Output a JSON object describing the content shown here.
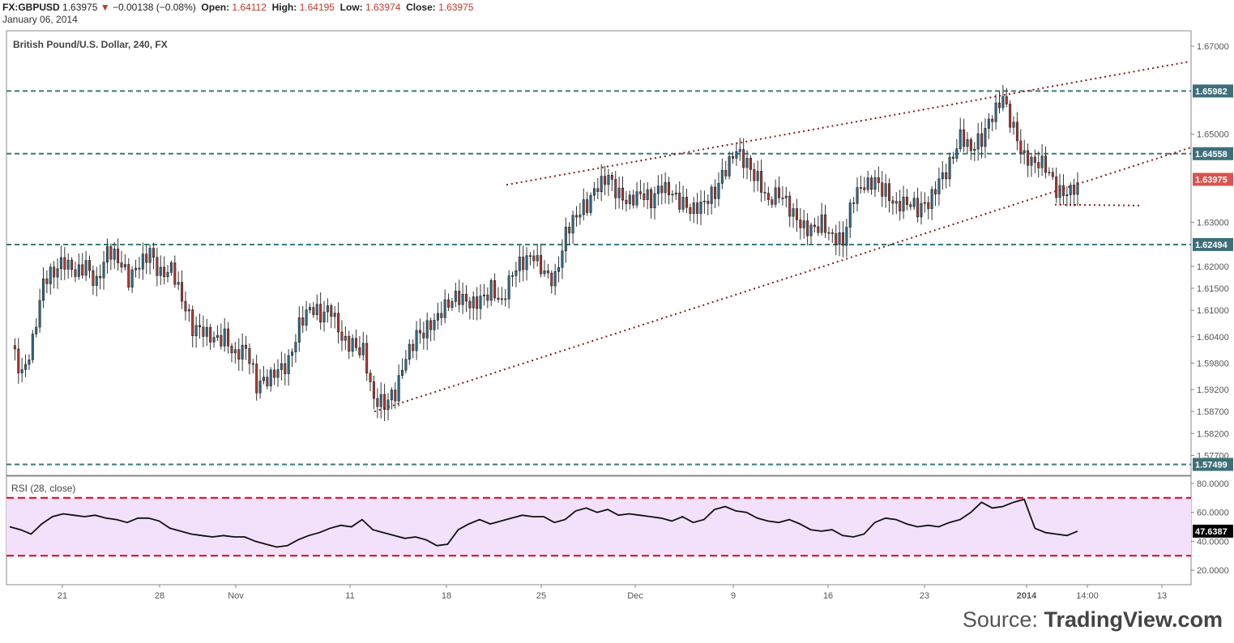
{
  "header": {
    "symbol": "FX:GBPUSD",
    "last": "1.63975",
    "change_arrow": "▼",
    "change": "−0.00138 (−0.08%)",
    "open_label": "Open:",
    "open": "1.64112",
    "high_label": "High:",
    "high": "1.64195",
    "low_label": "Low:",
    "low": "1.63974",
    "close_label": "Close:",
    "close": "1.63975",
    "date": "January 06, 2014"
  },
  "source": {
    "prefix": "Source: ",
    "brand": "TradingView.com"
  },
  "colors": {
    "up": "#2c6e8f",
    "down": "#b03a2e",
    "hline": "#3a7a7a",
    "trend": "#8b1a1a",
    "rsi_band": "#f3e0fb",
    "rsi_bound": "#e0001b",
    "price_tag": "#d9534f",
    "level_tag": "#3d6f78"
  },
  "chart_data": [
    {
      "type": "candlestick",
      "title": "British Pound/U.S. Dollar, 240, FX",
      "ylim": [
        1.5725,
        1.6735
      ],
      "y_ticks": [
        "1.67000",
        "1.65000",
        "1.63000",
        "1.62000",
        "1.61500",
        "1.61000",
        "1.60400",
        "1.59800",
        "1.59200",
        "1.58700",
        "1.58200",
        "1.57700"
      ],
      "y_tick_values": [
        1.67,
        1.65,
        1.63,
        1.62,
        1.615,
        1.61,
        1.604,
        1.598,
        1.592,
        1.587,
        1.582,
        1.577
      ],
      "x_ticks": [
        "21",
        "28",
        "Nov",
        "11",
        "18",
        "25",
        "Dec",
        "9",
        "16",
        "23",
        "2014",
        "14:00",
        "13"
      ],
      "x_ticks_bold": [
        false,
        false,
        false,
        false,
        false,
        false,
        false,
        false,
        false,
        false,
        true,
        false,
        false
      ],
      "horizontal_levels": [
        1.65982,
        1.64558,
        1.62494,
        1.57499
      ],
      "level_labels": [
        "1.65982",
        "1.64558",
        "1.62494",
        "1.57499"
      ],
      "last_price": 1.63975,
      "last_price_label": "1.63975",
      "trendlines": [
        {
          "style": "dotted",
          "from": [
            0.0,
            1.6385
          ],
          "to": [
            1.0,
            1.6665
          ],
          "x_domain": "relative_start_mid_dec_to_end"
        },
        {
          "style": "dotted",
          "from": [
            0.0,
            1.587
          ],
          "to": [
            1.0,
            1.647
          ]
        },
        {
          "style": "dotted",
          "from": [
            0.0,
            1.634
          ],
          "to": [
            1.0,
            1.634
          ]
        }
      ],
      "price_path": [
        1.602,
        1.595,
        1.603,
        1.617,
        1.619,
        1.621,
        1.618,
        1.62,
        1.616,
        1.624,
        1.622,
        1.617,
        1.62,
        1.623,
        1.618,
        1.62,
        1.613,
        1.606,
        1.605,
        1.603,
        1.604,
        1.6,
        1.602,
        1.593,
        1.594,
        1.596,
        1.598,
        1.607,
        1.611,
        1.609,
        1.61,
        1.603,
        1.602,
        1.601,
        1.59,
        1.589,
        1.591,
        1.599,
        1.604,
        1.606,
        1.609,
        1.612,
        1.613,
        1.611,
        1.612,
        1.615,
        1.612,
        1.619,
        1.621,
        1.622,
        1.618,
        1.617,
        1.628,
        1.632,
        1.634,
        1.638,
        1.64,
        1.636,
        1.635,
        1.637,
        1.635,
        1.638,
        1.636,
        1.634,
        1.633,
        1.635,
        1.637,
        1.642,
        1.646,
        1.643,
        1.64,
        1.635,
        1.637,
        1.633,
        1.629,
        1.628,
        1.63,
        1.627,
        1.626,
        1.636,
        1.638,
        1.639,
        1.637,
        1.634,
        1.635,
        1.633,
        1.634,
        1.639,
        1.643,
        1.65,
        1.647,
        1.649,
        1.654,
        1.658,
        1.651,
        1.645,
        1.644,
        1.643,
        1.637,
        1.636,
        1.639
      ],
      "price_path_note": ""
    },
    {
      "type": "line",
      "title": "RSI (28, close)",
      "ylim": [
        10,
        85
      ],
      "y_ticks": [
        "80.0000",
        "60.0000",
        "40.0000",
        "20.0000"
      ],
      "y_tick_values": [
        80,
        60,
        40,
        20
      ],
      "bounds": [
        70,
        30
      ],
      "last_value": "47.6387",
      "values": [
        50,
        48,
        45,
        52,
        57,
        59,
        58,
        57,
        58,
        56,
        55,
        53,
        56,
        56,
        54,
        49,
        47,
        45,
        44,
        43,
        44,
        43,
        43,
        40,
        38,
        36,
        37,
        41,
        44,
        46,
        49,
        51,
        50,
        55,
        48,
        46,
        44,
        42,
        43,
        41,
        37,
        38,
        48,
        52,
        55,
        52,
        54,
        56,
        58,
        57,
        57,
        53,
        55,
        61,
        63,
        60,
        62,
        58,
        59,
        58,
        57,
        56,
        54,
        57,
        53,
        55,
        62,
        64,
        61,
        60,
        56,
        54,
        53,
        55,
        52,
        48,
        47,
        48,
        44,
        43,
        45,
        53,
        56,
        55,
        52,
        50,
        51,
        50,
        53,
        55,
        60,
        67,
        63,
        64,
        67,
        69,
        49,
        46,
        45,
        44,
        47
      ]
    }
  ]
}
